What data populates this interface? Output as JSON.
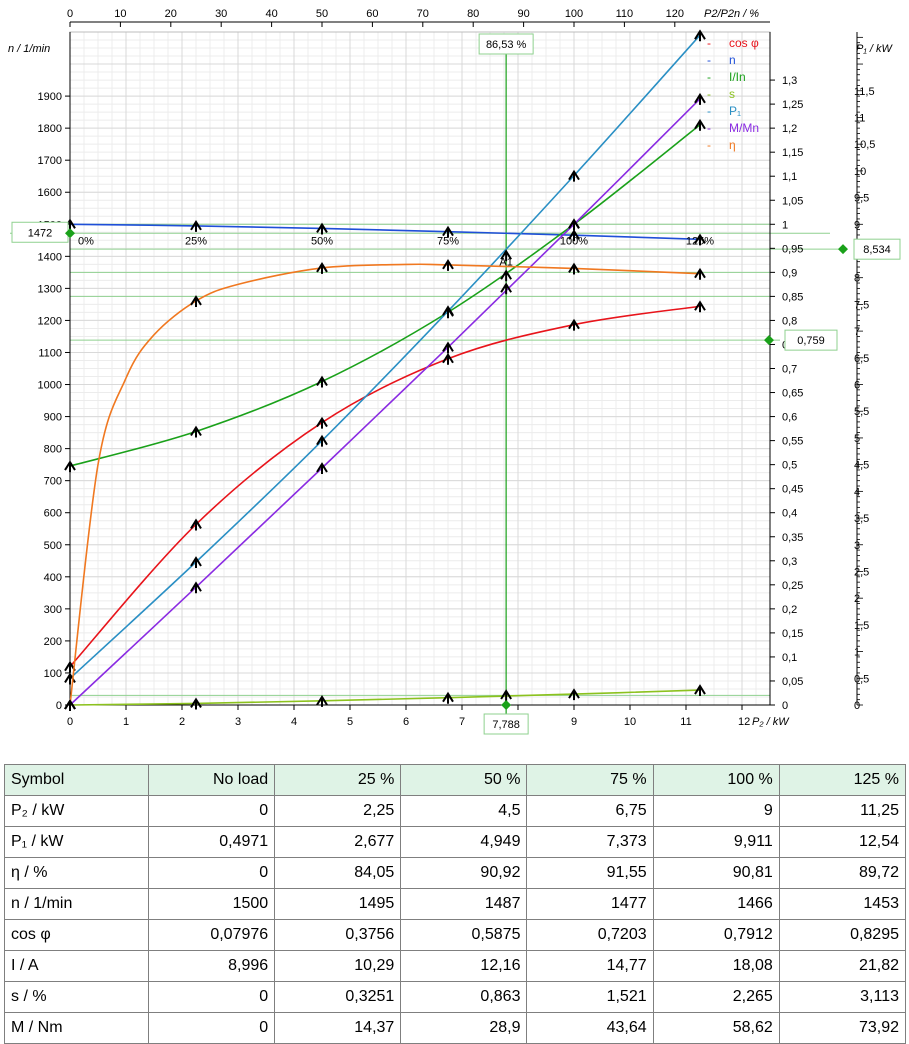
{
  "chart_data": {
    "type": "line",
    "x_axis": {
      "label": "P₂ / kW",
      "ticks": [
        "0",
        "1",
        "2",
        "3",
        "4",
        "5",
        "6",
        "7",
        "8",
        "9",
        "10",
        "11",
        "12"
      ],
      "range": [
        0,
        12.5
      ]
    },
    "top_axis": {
      "label": "P2/P2n  / %",
      "ticks": [
        "0",
        "10",
        "20",
        "30",
        "40",
        "50",
        "60",
        "70",
        "80",
        "90",
        "100",
        "110",
        "120"
      ]
    },
    "left_axis": {
      "label": "n / 1/min",
      "ticks": [
        "0",
        "100",
        "200",
        "300",
        "400",
        "500",
        "600",
        "700",
        "800",
        "900",
        "1000",
        "1100",
        "1200",
        "1300",
        "1400",
        "1500",
        "1600",
        "1700",
        "1800",
        "1900"
      ],
      "range": [
        0,
        2100
      ]
    },
    "mid_axis": {
      "ticks": [
        "0",
        "0,05",
        "0,1",
        "0,15",
        "0,2",
        "0,25",
        "0,3",
        "0,35",
        "0,4",
        "0,45",
        "0,5",
        "0,55",
        "0,6",
        "0,65",
        "0,7",
        "0,75",
        "0,8",
        "0,85",
        "0,9",
        "0,95",
        "1",
        "1,05",
        "1,1",
        "1,15",
        "1,2",
        "1,25",
        "1,3"
      ],
      "range": [
        0,
        1.4
      ]
    },
    "right_axis": {
      "label": "P₁ / kW",
      "ticks": [
        "0",
        "0,5",
        "1",
        "1,5",
        "2",
        "2,5",
        "3",
        "3,5",
        "4",
        "4,5",
        "5",
        "5,5",
        "6",
        "6,5",
        "7",
        "7,5",
        "8",
        "8,5",
        "9",
        "9,5",
        "10",
        "10,5",
        "11",
        "11,5"
      ],
      "range": [
        0,
        12.6
      ]
    },
    "load_labels": [
      "0%",
      "25%",
      "50%",
      "75%",
      "100%",
      "125%"
    ],
    "marker_label": "A1",
    "legend": [
      {
        "name": "cos φ",
        "color": "#e8141b"
      },
      {
        "name": "n",
        "color": "#1f4fd8"
      },
      {
        "name": "I/In",
        "color": "#1aa11a"
      },
      {
        "name": "s",
        "color": "#8cc21e"
      },
      {
        "name": "P₁",
        "color": "#2a8fc4"
      },
      {
        "name": "M/Mn",
        "color": "#8a2be2"
      },
      {
        "name": "η",
        "color": "#f07820"
      }
    ],
    "load_points_p2": [
      0,
      2.25,
      4.5,
      6.75,
      9,
      11.25
    ],
    "series": [
      {
        "name": "cos φ",
        "axis": "mid",
        "values": [
          0.07976,
          0.3756,
          0.5875,
          0.7203,
          0.7912,
          0.8295
        ]
      },
      {
        "name": "n",
        "axis": "left",
        "values": [
          1500,
          1495,
          1487,
          1477,
          1466,
          1453
        ]
      },
      {
        "name": "I/In",
        "axis": "mid",
        "values": [
          0.497,
          0.569,
          0.673,
          0.817,
          1.0,
          1.207
        ]
      },
      {
        "name": "s",
        "axis": "mid",
        "values": [
          0,
          0.00325,
          0.00863,
          0.01521,
          0.02265,
          0.03113
        ]
      },
      {
        "name": "P₁",
        "axis": "right",
        "values": [
          0.4971,
          2.677,
          4.949,
          7.373,
          9.911,
          12.54
        ]
      },
      {
        "name": "M/Mn",
        "axis": "mid",
        "values": [
          0,
          0.245,
          0.493,
          0.744,
          1.0,
          1.261
        ]
      },
      {
        "name": "η",
        "axis": "mid",
        "x": [
          0,
          0.5,
          1,
          1.5,
          2.25,
          3,
          4.5,
          6,
          6.75,
          9,
          11.25
        ],
        "values": [
          0,
          0.5,
          0.68,
          0.77,
          0.8405,
          0.875,
          0.9092,
          0.9165,
          0.9155,
          0.9081,
          0.8972
        ]
      }
    ],
    "operating_point": {
      "percent_label": "86,53 %",
      "p2_label": "7,788",
      "p2": 7.788,
      "n_label": "1472",
      "n": 1472,
      "p1_label": "8,534",
      "p1": 8.534,
      "mid_label": "0,759",
      "mid": 0.759
    },
    "grid": true,
    "legend_position": "top-right"
  },
  "table": {
    "headers": [
      "Symbol",
      "No load",
      "25 %",
      "50 %",
      "75 %",
      "100 %",
      "125 %"
    ],
    "rows": [
      [
        "P₂ / kW",
        "0",
        "2,25",
        "4,5",
        "6,75",
        "9",
        "11,25"
      ],
      [
        "P₁ / kW",
        "0,4971",
        "2,677",
        "4,949",
        "7,373",
        "9,911",
        "12,54"
      ],
      [
        "η / %",
        "0",
        "84,05",
        "90,92",
        "91,55",
        "90,81",
        "89,72"
      ],
      [
        "n / 1/min",
        "1500",
        "1495",
        "1487",
        "1477",
        "1466",
        "1453"
      ],
      [
        "cos φ",
        "0,07976",
        "0,3756",
        "0,5875",
        "0,7203",
        "0,7912",
        "0,8295"
      ],
      [
        "I / A",
        "8,996",
        "10,29",
        "12,16",
        "14,77",
        "18,08",
        "21,82"
      ],
      [
        "s / %",
        "0",
        "0,3251",
        "0,863",
        "1,521",
        "2,265",
        "3,113"
      ],
      [
        "M / Nm",
        "0",
        "14,37",
        "28,9",
        "43,64",
        "58,62",
        "73,92"
      ]
    ]
  }
}
